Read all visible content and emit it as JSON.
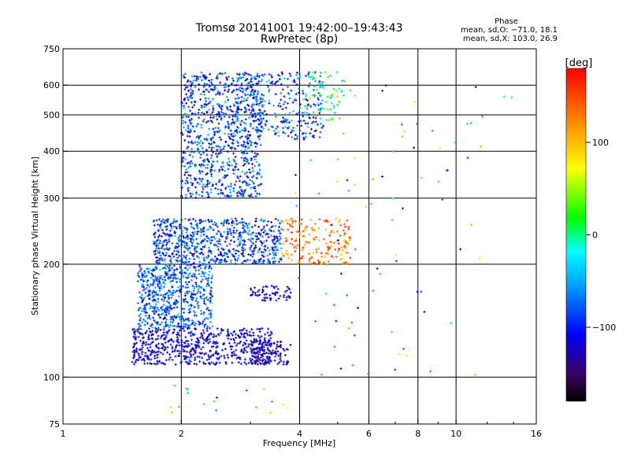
{
  "chart_data": {
    "type": "scatter",
    "title": "Tromsø 20141001 19:42:00–19:43:43",
    "subtitle": "RwPretec (8p)",
    "info": {
      "heading": "Phase",
      "line1": "mean, sd,O: −71.0, 18.1",
      "line2": "mean, sd,X: 103.0, 26.9"
    },
    "xlabel": "Frequency [MHz]",
    "ylabel": "Stationary phase Virtual Height [km]",
    "xscale": "log",
    "yscale": "log",
    "xlim": [
      1,
      16
    ],
    "ylim": [
      75,
      750
    ],
    "xticks": [
      1,
      2,
      4,
      6,
      8,
      10,
      16
    ],
    "xticklabels": [
      "1",
      "2",
      "4",
      "6",
      "8",
      "10",
      "16"
    ],
    "yticks": [
      75,
      100,
      200,
      300,
      400,
      500,
      600,
      750
    ],
    "yticklabels": [
      "75",
      "100",
      "200",
      "300",
      "400",
      "500",
      "600",
      "750"
    ],
    "xgrid": [
      2,
      4,
      6,
      8,
      10
    ],
    "ygrid": [
      100,
      200,
      300,
      400,
      500,
      600
    ],
    "grid": true,
    "colorbar": {
      "label": "[deg]",
      "range": [
        -180,
        180
      ],
      "ticks": [
        100,
        0,
        -100
      ],
      "ticklabels": [
        "100",
        "0",
        "−100"
      ]
    },
    "point_color_scale": "phase in degrees",
    "clusters": [
      {
        "x_range": [
          2.0,
          3.2
        ],
        "y_range": [
          300,
          650
        ],
        "phase_range": [
          -140,
          -40
        ],
        "count": 900
      },
      {
        "x_range": [
          3.0,
          4.6
        ],
        "y_range": [
          430,
          650
        ],
        "phase_range": [
          -150,
          -30
        ],
        "count": 260
      },
      {
        "x_range": [
          4.1,
          5.2
        ],
        "y_range": [
          480,
          650
        ],
        "phase_range": [
          -50,
          50
        ],
        "count": 60
      },
      {
        "x_range": [
          1.7,
          3.6
        ],
        "y_range": [
          200,
          265
        ],
        "phase_range": [
          -140,
          -40
        ],
        "count": 700
      },
      {
        "x_range": [
          3.6,
          5.4
        ],
        "y_range": [
          200,
          265
        ],
        "phase_range": [
          90,
          170
        ],
        "count": 180
      },
      {
        "x_range": [
          1.55,
          2.4
        ],
        "y_range": [
          135,
          200
        ],
        "phase_range": [
          -120,
          -40
        ],
        "count": 600
      },
      {
        "x_range": [
          1.5,
          3.4
        ],
        "y_range": [
          108,
          135
        ],
        "phase_range": [
          -140,
          -90
        ],
        "count": 600
      },
      {
        "x_range": [
          3.0,
          3.8
        ],
        "y_range": [
          108,
          125
        ],
        "phase_range": [
          -170,
          -90
        ],
        "count": 120
      },
      {
        "x_range": [
          3.0,
          3.8
        ],
        "y_range": [
          160,
          175
        ],
        "phase_range": [
          -140,
          -100
        ],
        "count": 60
      },
      {
        "x_range": [
          1.6,
          3.8
        ],
        "y_range": [
          80,
          95
        ],
        "phase_range": [
          -160,
          160
        ],
        "count": 18
      },
      {
        "x_range": [
          3.8,
          12.0
        ],
        "y_range": [
          100,
          620
        ],
        "phase_range": [
          -160,
          170
        ],
        "count": 90
      },
      {
        "x_range": [
          13.0,
          14.0
        ],
        "y_range": [
          555,
          565
        ],
        "phase_range": [
          -90,
          20
        ],
        "count": 2
      }
    ]
  }
}
